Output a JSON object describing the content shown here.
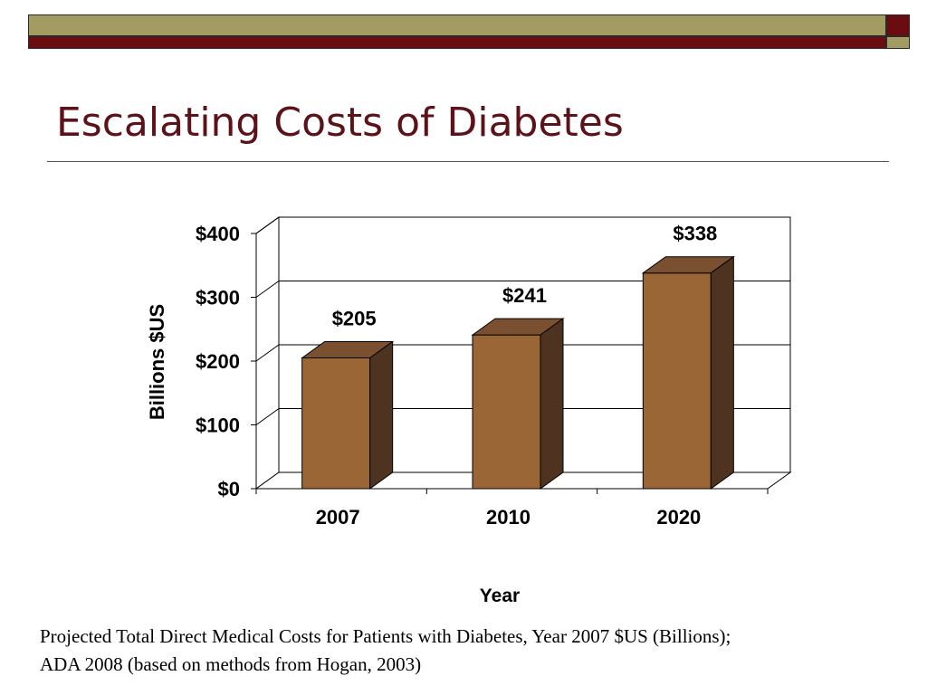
{
  "slide": {
    "title": "Escalating Costs of Diabetes",
    "caption_line1": "Projected Total Direct Medical Costs for Patients with Diabetes, Year 2007 $US (Billions);",
    "caption_line2": "ADA 2008 (based on methods from Hogan, 2003)"
  },
  "colors": {
    "band_olive": "#a29b62",
    "band_maroon": "#6b0d10",
    "title": "#5c1219",
    "bar_front": "#9a6636",
    "bar_top": "#7b5030",
    "bar_side": "#4e3420"
  },
  "chart_data": {
    "type": "bar",
    "style": "3d",
    "categories": [
      "2007",
      "2010",
      "2020"
    ],
    "values": [
      205,
      241,
      338
    ],
    "data_labels": [
      "$205",
      "$241",
      "$338"
    ],
    "xlabel": "Year",
    "ylabel": "Billions $US",
    "ylim": [
      0,
      400
    ],
    "yticks": [
      0,
      100,
      200,
      300,
      400
    ],
    "ytick_labels": [
      "$0",
      "$100",
      "$200",
      "$300",
      "$400"
    ],
    "grid": true,
    "legend": "none"
  }
}
